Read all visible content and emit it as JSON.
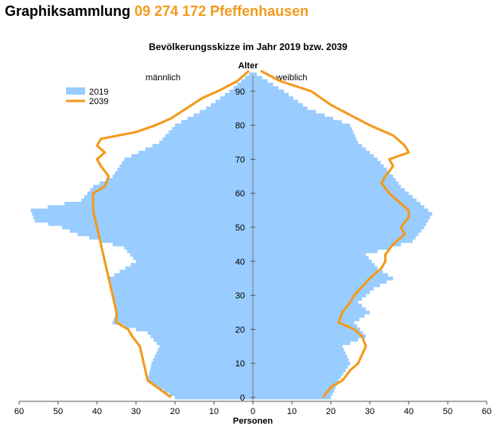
{
  "header": {
    "prefix": "Graphiksammlung",
    "place": "09 274 172 Pfeffenhausen"
  },
  "chart_data": {
    "type": "population-pyramid",
    "title": "Bevölkerungsskizze im Jahr 2019 bzw. 2039",
    "ylabel": "Alter",
    "xlabel": "Personen",
    "left_label": "männlich",
    "right_label": "weiblich",
    "xlim": [
      0,
      60
    ],
    "ylim": [
      0,
      95
    ],
    "x_ticks": [
      60,
      50,
      40,
      30,
      20,
      10,
      0,
      10,
      20,
      30,
      40,
      50,
      60
    ],
    "y_ticks": [
      0,
      10,
      20,
      30,
      40,
      50,
      60,
      70,
      80,
      90
    ],
    "legend": [
      {
        "name": "2019",
        "color": "#99ccff",
        "kind": "bar"
      },
      {
        "name": "2039",
        "color": "#f39a1c",
        "kind": "line"
      }
    ],
    "legend_position": "top-left",
    "series": [
      {
        "name": "2019",
        "kind": "bars",
        "color": "#99ccff",
        "male_knots": [
          [
            0,
            20
          ],
          [
            5,
            27
          ],
          [
            10,
            26
          ],
          [
            15,
            24
          ],
          [
            19,
            27
          ],
          [
            22,
            36
          ],
          [
            25,
            35
          ],
          [
            30,
            36
          ],
          [
            35,
            37
          ],
          [
            40,
            30
          ],
          [
            44,
            33
          ],
          [
            48,
            45
          ],
          [
            50,
            49
          ],
          [
            52,
            56
          ],
          [
            55,
            57
          ],
          [
            58,
            44
          ],
          [
            62,
            41
          ],
          [
            65,
            36
          ],
          [
            70,
            33
          ],
          [
            75,
            24
          ],
          [
            80,
            20
          ],
          [
            85,
            12
          ],
          [
            90,
            6
          ],
          [
            95,
            1
          ]
        ],
        "female_knots": [
          [
            0,
            20
          ],
          [
            5,
            22
          ],
          [
            10,
            25
          ],
          [
            15,
            23
          ],
          [
            18,
            29
          ],
          [
            22,
            26
          ],
          [
            25,
            30
          ],
          [
            28,
            27
          ],
          [
            32,
            31
          ],
          [
            35,
            36
          ],
          [
            38,
            32
          ],
          [
            42,
            29
          ],
          [
            46,
            41
          ],
          [
            50,
            44
          ],
          [
            54,
            46
          ],
          [
            58,
            42
          ],
          [
            62,
            38
          ],
          [
            65,
            36
          ],
          [
            70,
            32
          ],
          [
            75,
            27
          ],
          [
            80,
            25
          ],
          [
            85,
            14
          ],
          [
            90,
            8
          ],
          [
            95,
            1
          ]
        ]
      },
      {
        "name": "2039",
        "kind": "line",
        "color": "#f39a1c",
        "male_knots": [
          [
            0,
            21
          ],
          [
            5,
            27
          ],
          [
            10,
            28
          ],
          [
            15,
            29
          ],
          [
            18,
            31
          ],
          [
            20,
            32
          ],
          [
            22,
            35
          ],
          [
            25,
            35
          ],
          [
            30,
            36
          ],
          [
            35,
            37
          ],
          [
            40,
            38
          ],
          [
            45,
            39
          ],
          [
            50,
            40
          ],
          [
            55,
            41
          ],
          [
            58,
            41
          ],
          [
            60,
            41
          ],
          [
            62,
            38
          ],
          [
            65,
            37
          ],
          [
            68,
            39
          ],
          [
            70,
            40
          ],
          [
            72,
            38
          ],
          [
            74,
            40
          ],
          [
            76,
            39
          ],
          [
            78,
            30
          ],
          [
            80,
            25
          ],
          [
            82,
            21
          ],
          [
            85,
            17
          ],
          [
            88,
            13
          ],
          [
            90,
            9
          ],
          [
            93,
            4
          ],
          [
            96,
            1
          ]
        ],
        "female_knots": [
          [
            0,
            18
          ],
          [
            3,
            20
          ],
          [
            5,
            23
          ],
          [
            8,
            25
          ],
          [
            10,
            27
          ],
          [
            15,
            29
          ],
          [
            18,
            28
          ],
          [
            20,
            26
          ],
          [
            22,
            22
          ],
          [
            25,
            23
          ],
          [
            28,
            25
          ],
          [
            30,
            26
          ],
          [
            35,
            30
          ],
          [
            38,
            33
          ],
          [
            40,
            34
          ],
          [
            42,
            34
          ],
          [
            45,
            36
          ],
          [
            48,
            39
          ],
          [
            50,
            38
          ],
          [
            53,
            40
          ],
          [
            55,
            40
          ],
          [
            58,
            37
          ],
          [
            60,
            35
          ],
          [
            63,
            33
          ],
          [
            65,
            34
          ],
          [
            68,
            36
          ],
          [
            70,
            35
          ],
          [
            72,
            40
          ],
          [
            74,
            39
          ],
          [
            77,
            36
          ],
          [
            80,
            30
          ],
          [
            83,
            25
          ],
          [
            86,
            20
          ],
          [
            90,
            15
          ],
          [
            93,
            7
          ],
          [
            96,
            2
          ]
        ]
      }
    ]
  }
}
